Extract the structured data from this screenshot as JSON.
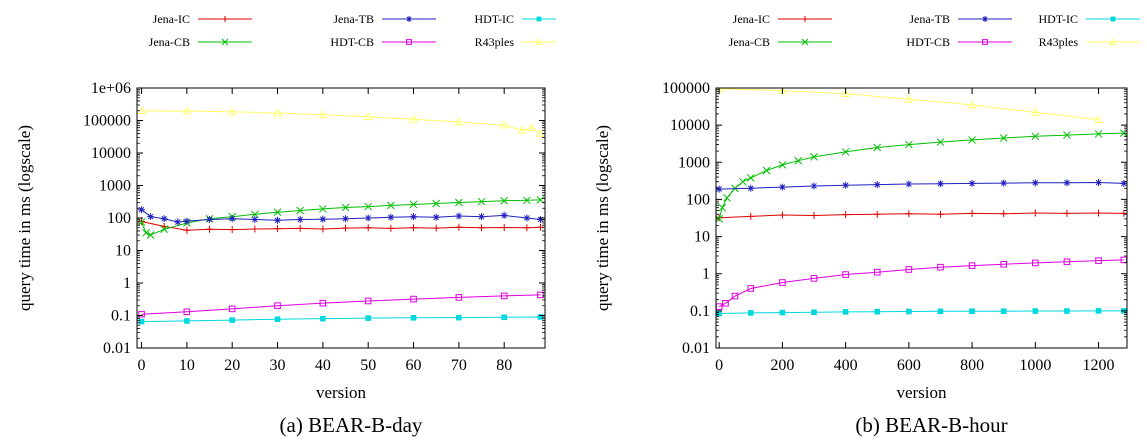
{
  "chart_data": [
    {
      "type": "line",
      "caption": "(a) BEAR-B-day",
      "xlabel": "version",
      "ylabel": "query time in ms (logscale)",
      "log_y": true,
      "xlim": [
        -1,
        89
      ],
      "ylim": [
        0.01,
        1000000
      ],
      "x_ticks": [
        "0",
        "10",
        "20",
        "30",
        "40",
        "50",
        "60",
        "70",
        "80"
      ],
      "y_ticks": [
        "0.01",
        "0.1",
        "1",
        "10",
        "100",
        "1000",
        "10000",
        "100000",
        "1e+06"
      ],
      "legend_position": "top",
      "grid": false,
      "series": [
        {
          "name": "Jena-IC",
          "color": "#e00000",
          "marker": "plus",
          "x": [
            0,
            5,
            10,
            15,
            20,
            25,
            30,
            35,
            40,
            45,
            50,
            55,
            60,
            65,
            70,
            75,
            80,
            85,
            88
          ],
          "y": [
            78,
            55,
            42,
            45,
            44,
            46,
            47,
            48,
            46,
            49,
            50,
            48,
            50,
            49,
            52,
            50,
            51,
            50,
            52
          ]
        },
        {
          "name": "Jena-CB",
          "color": "#00c000",
          "marker": "cross",
          "x": [
            0,
            1,
            2,
            5,
            10,
            15,
            20,
            25,
            30,
            35,
            40,
            45,
            50,
            55,
            60,
            65,
            70,
            75,
            80,
            85,
            88
          ],
          "y": [
            75,
            35,
            30,
            45,
            70,
            95,
            110,
            130,
            150,
            170,
            190,
            210,
            225,
            245,
            260,
            280,
            300,
            320,
            340,
            350,
            360
          ]
        },
        {
          "name": "Jena-TB",
          "color": "#2020c0",
          "marker": "star",
          "x": [
            0,
            2,
            5,
            8,
            10,
            15,
            20,
            25,
            30,
            35,
            40,
            45,
            50,
            55,
            60,
            65,
            70,
            75,
            80,
            85,
            88
          ],
          "y": [
            180,
            110,
            95,
            75,
            80,
            90,
            95,
            90,
            85,
            90,
            92,
            95,
            100,
            105,
            110,
            105,
            115,
            110,
            120,
            100,
            90
          ]
        },
        {
          "name": "HDT-CB",
          "color": "#e000e0",
          "marker": "square",
          "x": [
            0,
            10,
            20,
            30,
            40,
            50,
            60,
            70,
            80,
            88
          ],
          "y": [
            0.11,
            0.13,
            0.16,
            0.2,
            0.24,
            0.28,
            0.32,
            0.36,
            0.4,
            0.43
          ]
        },
        {
          "name": "HDT-IC",
          "color": "#00d8e0",
          "marker": "filled-square",
          "x": [
            0,
            10,
            20,
            30,
            40,
            50,
            60,
            70,
            80,
            88
          ],
          "y": [
            0.065,
            0.068,
            0.072,
            0.077,
            0.08,
            0.083,
            0.085,
            0.086,
            0.088,
            0.09
          ]
        },
        {
          "name": "R43ples",
          "color": "#ffff66",
          "marker": "triangle",
          "x": [
            0,
            10,
            20,
            30,
            40,
            50,
            60,
            70,
            80,
            84,
            86,
            88
          ],
          "y": [
            200000,
            195000,
            185000,
            170000,
            150000,
            130000,
            110000,
            90000,
            72000,
            50000,
            60000,
            40000
          ]
        }
      ]
    },
    {
      "type": "line",
      "caption": "(b) BEAR-B-hour",
      "xlabel": "version",
      "ylabel": "query time in ms (logscale)",
      "log_y": true,
      "xlim": [
        -10,
        1290
      ],
      "ylim": [
        0.01,
        100000
      ],
      "x_ticks": [
        "0",
        "200",
        "400",
        "600",
        "800",
        "1000",
        "1200"
      ],
      "y_ticks": [
        "0.01",
        "0.1",
        "1",
        "10",
        "100",
        "1000",
        "10000",
        "100000"
      ],
      "legend_position": "top",
      "grid": false,
      "series": [
        {
          "name": "Jena-IC",
          "color": "#e00000",
          "marker": "plus",
          "x": [
            0,
            100,
            200,
            300,
            400,
            500,
            600,
            700,
            800,
            900,
            1000,
            1100,
            1200,
            1280
          ],
          "y": [
            32,
            35,
            38,
            37,
            39,
            40,
            41,
            40,
            42,
            41,
            43,
            42,
            43,
            42
          ]
        },
        {
          "name": "Jena-CB",
          "color": "#00c000",
          "marker": "cross",
          "x": [
            0,
            10,
            25,
            50,
            75,
            100,
            150,
            200,
            250,
            300,
            400,
            500,
            600,
            700,
            800,
            900,
            1000,
            1100,
            1200,
            1280
          ],
          "y": [
            30,
            60,
            110,
            200,
            300,
            380,
            600,
            850,
            1100,
            1400,
            1900,
            2500,
            3000,
            3500,
            4000,
            4500,
            5000,
            5400,
            5800,
            6100
          ]
        },
        {
          "name": "Jena-TB",
          "color": "#2020c0",
          "marker": "star",
          "x": [
            0,
            100,
            200,
            300,
            400,
            500,
            600,
            700,
            800,
            900,
            1000,
            1100,
            1200,
            1280
          ],
          "y": [
            190,
            200,
            215,
            230,
            240,
            250,
            260,
            265,
            270,
            275,
            280,
            280,
            285,
            270
          ]
        },
        {
          "name": "HDT-CB",
          "color": "#e000e0",
          "marker": "square",
          "x": [
            0,
            20,
            50,
            100,
            200,
            300,
            400,
            500,
            600,
            700,
            800,
            900,
            1000,
            1100,
            1200,
            1280
          ],
          "y": [
            0.13,
            0.16,
            0.25,
            0.4,
            0.58,
            0.75,
            0.95,
            1.1,
            1.3,
            1.5,
            1.65,
            1.8,
            1.95,
            2.1,
            2.25,
            2.35
          ]
        },
        {
          "name": "HDT-IC",
          "color": "#00d8e0",
          "marker": "filled-square",
          "x": [
            0,
            100,
            200,
            300,
            400,
            500,
            600,
            700,
            800,
            900,
            1000,
            1100,
            1200,
            1280
          ],
          "y": [
            0.085,
            0.088,
            0.09,
            0.092,
            0.094,
            0.095,
            0.096,
            0.097,
            0.098,
            0.098,
            0.099,
            0.099,
            0.1,
            0.1
          ]
        },
        {
          "name": "R43ples",
          "color": "#ffff66",
          "marker": "triangle",
          "x": [
            0,
            200,
            400,
            600,
            800,
            1000,
            1200
          ],
          "y": [
            95000,
            85000,
            70000,
            50000,
            35000,
            22000,
            14000
          ]
        }
      ]
    }
  ]
}
